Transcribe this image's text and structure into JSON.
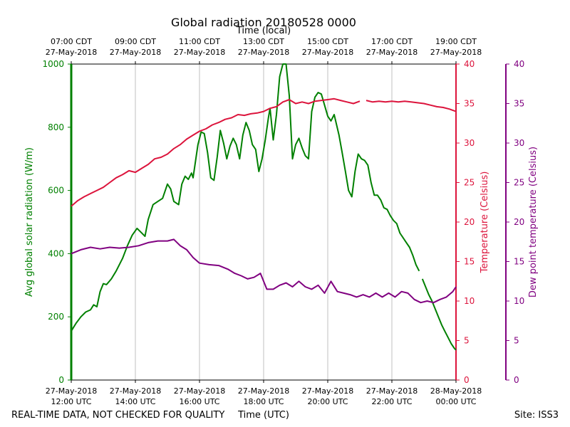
{
  "chart_data": {
    "type": "line",
    "title": "Global radiation 20180528 0000",
    "top_axis_label": "Time (local)",
    "bottom_axis_label": "Time (UTC)",
    "footer_left": "REAL-TIME DATA, NOT CHECKED FOR QUALITY",
    "footer_right": "Site: ISS3",
    "x_range_hours_utc": [
      12,
      24
    ],
    "bottom_ticks": [
      {
        "h": 12,
        "line1": "27-May-2018",
        "line2": "12:00 UTC"
      },
      {
        "h": 14,
        "line1": "27-May-2018",
        "line2": "14:00 UTC"
      },
      {
        "h": 16,
        "line1": "27-May-2018",
        "line2": "16:00 UTC"
      },
      {
        "h": 18,
        "line1": "27-May-2018",
        "line2": "18:00 UTC"
      },
      {
        "h": 20,
        "line1": "27-May-2018",
        "line2": "20:00 UTC"
      },
      {
        "h": 22,
        "line1": "27-May-2018",
        "line2": "22:00 UTC"
      },
      {
        "h": 24,
        "line1": "28-May-2018",
        "line2": "00:00 UTC"
      }
    ],
    "top_ticks": [
      {
        "h": 12,
        "line1": "07:00 CDT",
        "line2": "27-May-2018"
      },
      {
        "h": 14,
        "line1": "09:00 CDT",
        "line2": "27-May-2018"
      },
      {
        "h": 16,
        "line1": "11:00 CDT",
        "line2": "27-May-2018"
      },
      {
        "h": 18,
        "line1": "13:00 CDT",
        "line2": "27-May-2018"
      },
      {
        "h": 20,
        "line1": "15:00 CDT",
        "line2": "27-May-2018"
      },
      {
        "h": 22,
        "line1": "17:00 CDT",
        "line2": "27-May-2018"
      },
      {
        "h": 24,
        "line1": "19:00 CDT",
        "line2": "27-May-2018"
      }
    ],
    "grid_x": true,
    "axes": {
      "radiation": {
        "label": "Avg global solar radiation (W/m)",
        "ylim": [
          0,
          1000
        ],
        "ticks": [
          "0",
          "200",
          "400",
          "600",
          "800",
          "1000"
        ],
        "color": "#008000"
      },
      "temperature": {
        "label": "Temperature (Celsius)",
        "ylim": [
          0,
          40
        ],
        "ticks": [
          "0",
          "5",
          "10",
          "15",
          "20",
          "25",
          "30",
          "35",
          "40"
        ],
        "color": "#dc143c"
      },
      "dewpoint": {
        "label": "Dew point temperature (Celsius)",
        "ylim": [
          0,
          40
        ],
        "ticks": [
          "0",
          "5",
          "10",
          "15",
          "20",
          "25",
          "30",
          "35",
          "40"
        ],
        "color": "#800080"
      }
    },
    "series": [
      {
        "key": "radiation",
        "color": "#008000",
        "gap_after_h": 22.85,
        "points": [
          [
            12.0,
            155
          ],
          [
            12.15,
            180
          ],
          [
            12.3,
            200
          ],
          [
            12.45,
            215
          ],
          [
            12.6,
            222
          ],
          [
            12.7,
            238
          ],
          [
            12.8,
            232
          ],
          [
            12.9,
            280
          ],
          [
            13.0,
            305
          ],
          [
            13.1,
            302
          ],
          [
            13.25,
            320
          ],
          [
            13.4,
            345
          ],
          [
            13.6,
            385
          ],
          [
            13.75,
            425
          ],
          [
            13.9,
            458
          ],
          [
            14.05,
            480
          ],
          [
            14.15,
            470
          ],
          [
            14.3,
            455
          ],
          [
            14.4,
            508
          ],
          [
            14.55,
            555
          ],
          [
            14.7,
            565
          ],
          [
            14.85,
            575
          ],
          [
            15.0,
            620
          ],
          [
            15.1,
            605
          ],
          [
            15.2,
            565
          ],
          [
            15.35,
            555
          ],
          [
            15.45,
            620
          ],
          [
            15.55,
            645
          ],
          [
            15.65,
            635
          ],
          [
            15.75,
            655
          ],
          [
            15.8,
            640
          ],
          [
            15.95,
            745
          ],
          [
            16.05,
            785
          ],
          [
            16.15,
            780
          ],
          [
            16.25,
            720
          ],
          [
            16.35,
            640
          ],
          [
            16.45,
            632
          ],
          [
            16.55,
            705
          ],
          [
            16.65,
            790
          ],
          [
            16.75,
            750
          ],
          [
            16.85,
            700
          ],
          [
            16.95,
            740
          ],
          [
            17.05,
            765
          ],
          [
            17.15,
            745
          ],
          [
            17.25,
            700
          ],
          [
            17.35,
            775
          ],
          [
            17.45,
            815
          ],
          [
            17.55,
            790
          ],
          [
            17.65,
            745
          ],
          [
            17.75,
            730
          ],
          [
            17.85,
            660
          ],
          [
            17.95,
            700
          ],
          [
            18.05,
            760
          ],
          [
            18.15,
            830
          ],
          [
            18.2,
            860
          ],
          [
            18.3,
            760
          ],
          [
            18.4,
            840
          ],
          [
            18.5,
            960
          ],
          [
            18.6,
            1000
          ],
          [
            18.7,
            1000
          ],
          [
            18.8,
            900
          ],
          [
            18.9,
            700
          ],
          [
            19.0,
            745
          ],
          [
            19.1,
            765
          ],
          [
            19.2,
            735
          ],
          [
            19.3,
            710
          ],
          [
            19.4,
            700
          ],
          [
            19.5,
            850
          ],
          [
            19.6,
            895
          ],
          [
            19.7,
            910
          ],
          [
            19.8,
            905
          ],
          [
            19.9,
            870
          ],
          [
            20.0,
            835
          ],
          [
            20.1,
            820
          ],
          [
            20.2,
            840
          ],
          [
            20.35,
            775
          ],
          [
            20.45,
            720
          ],
          [
            20.55,
            660
          ],
          [
            20.65,
            600
          ],
          [
            20.75,
            580
          ],
          [
            20.85,
            660
          ],
          [
            20.95,
            715
          ],
          [
            21.05,
            700
          ],
          [
            21.15,
            695
          ],
          [
            21.25,
            680
          ],
          [
            21.35,
            625
          ],
          [
            21.45,
            585
          ],
          [
            21.55,
            585
          ],
          [
            21.65,
            570
          ],
          [
            21.75,
            545
          ],
          [
            21.85,
            540
          ],
          [
            21.95,
            520
          ],
          [
            22.05,
            505
          ],
          [
            22.15,
            495
          ],
          [
            22.25,
            465
          ],
          [
            22.35,
            450
          ],
          [
            22.45,
            435
          ],
          [
            22.55,
            420
          ],
          [
            22.65,
            395
          ],
          [
            22.75,
            365
          ],
          [
            22.85,
            345
          ],
          [
            22.95,
            320
          ],
          [
            23.05,
            295
          ],
          [
            23.15,
            270
          ],
          [
            23.25,
            250
          ],
          [
            23.35,
            225
          ],
          [
            23.45,
            200
          ],
          [
            23.55,
            175
          ],
          [
            23.65,
            155
          ],
          [
            23.75,
            135
          ],
          [
            23.85,
            115
          ],
          [
            23.95,
            100
          ],
          [
            24.0,
            95
          ]
        ]
      },
      {
        "key": "temperature",
        "color": "#dc143c",
        "gap_after_h": 21.0,
        "points": [
          [
            12.0,
            22.0
          ],
          [
            12.2,
            22.7
          ],
          [
            12.4,
            23.2
          ],
          [
            12.6,
            23.6
          ],
          [
            12.8,
            24.0
          ],
          [
            13.0,
            24.4
          ],
          [
            13.2,
            25.0
          ],
          [
            13.4,
            25.6
          ],
          [
            13.6,
            26.0
          ],
          [
            13.8,
            26.5
          ],
          [
            14.0,
            26.3
          ],
          [
            14.2,
            26.8
          ],
          [
            14.4,
            27.3
          ],
          [
            14.6,
            28.0
          ],
          [
            14.8,
            28.2
          ],
          [
            15.0,
            28.6
          ],
          [
            15.2,
            29.3
          ],
          [
            15.4,
            29.8
          ],
          [
            15.6,
            30.5
          ],
          [
            15.8,
            31.0
          ],
          [
            16.0,
            31.5
          ],
          [
            16.2,
            31.8
          ],
          [
            16.4,
            32.3
          ],
          [
            16.6,
            32.6
          ],
          [
            16.8,
            33.0
          ],
          [
            17.0,
            33.2
          ],
          [
            17.2,
            33.6
          ],
          [
            17.4,
            33.5
          ],
          [
            17.6,
            33.7
          ],
          [
            17.8,
            33.8
          ],
          [
            18.0,
            34.0
          ],
          [
            18.2,
            34.4
          ],
          [
            18.4,
            34.6
          ],
          [
            18.6,
            35.2
          ],
          [
            18.8,
            35.5
          ],
          [
            19.0,
            35.0
          ],
          [
            19.2,
            35.2
          ],
          [
            19.4,
            35.0
          ],
          [
            19.6,
            35.3
          ],
          [
            19.8,
            35.4
          ],
          [
            20.0,
            35.5
          ],
          [
            20.2,
            35.6
          ],
          [
            20.4,
            35.4
          ],
          [
            20.6,
            35.2
          ],
          [
            20.8,
            35.0
          ],
          [
            21.0,
            35.3
          ],
          [
            21.2,
            35.4
          ],
          [
            21.4,
            35.2
          ],
          [
            21.6,
            35.3
          ],
          [
            21.8,
            35.2
          ],
          [
            22.0,
            35.3
          ],
          [
            22.2,
            35.2
          ],
          [
            22.4,
            35.3
          ],
          [
            22.6,
            35.2
          ],
          [
            22.8,
            35.1
          ],
          [
            23.0,
            35.0
          ],
          [
            23.2,
            34.8
          ],
          [
            23.4,
            34.6
          ],
          [
            23.6,
            34.5
          ],
          [
            23.8,
            34.3
          ],
          [
            24.0,
            34.0
          ]
        ]
      },
      {
        "key": "dewpoint",
        "color": "#800080",
        "gap_after_h": 99,
        "points": [
          [
            12.0,
            16.0
          ],
          [
            12.3,
            16.5
          ],
          [
            12.6,
            16.8
          ],
          [
            12.9,
            16.6
          ],
          [
            13.2,
            16.8
          ],
          [
            13.5,
            16.7
          ],
          [
            13.8,
            16.8
          ],
          [
            14.1,
            17.0
          ],
          [
            14.4,
            17.4
          ],
          [
            14.7,
            17.6
          ],
          [
            15.0,
            17.6
          ],
          [
            15.2,
            17.8
          ],
          [
            15.4,
            17.0
          ],
          [
            15.6,
            16.5
          ],
          [
            15.8,
            15.5
          ],
          [
            16.0,
            14.8
          ],
          [
            16.3,
            14.6
          ],
          [
            16.6,
            14.5
          ],
          [
            16.9,
            14.0
          ],
          [
            17.1,
            13.5
          ],
          [
            17.3,
            13.2
          ],
          [
            17.5,
            12.8
          ],
          [
            17.7,
            13.0
          ],
          [
            17.9,
            13.5
          ],
          [
            18.1,
            11.5
          ],
          [
            18.3,
            11.5
          ],
          [
            18.5,
            12.0
          ],
          [
            18.7,
            12.3
          ],
          [
            18.9,
            11.8
          ],
          [
            19.1,
            12.5
          ],
          [
            19.3,
            11.8
          ],
          [
            19.5,
            11.5
          ],
          [
            19.7,
            12.0
          ],
          [
            19.9,
            11.0
          ],
          [
            20.1,
            12.5
          ],
          [
            20.3,
            11.2
          ],
          [
            20.5,
            11.0
          ],
          [
            20.7,
            10.8
          ],
          [
            20.9,
            10.5
          ],
          [
            21.1,
            10.8
          ],
          [
            21.3,
            10.5
          ],
          [
            21.5,
            11.0
          ],
          [
            21.7,
            10.5
          ],
          [
            21.9,
            11.0
          ],
          [
            22.1,
            10.5
          ],
          [
            22.3,
            11.2
          ],
          [
            22.5,
            11.0
          ],
          [
            22.7,
            10.2
          ],
          [
            22.9,
            9.8
          ],
          [
            23.1,
            10.0
          ],
          [
            23.3,
            9.8
          ],
          [
            23.5,
            10.2
          ],
          [
            23.7,
            10.5
          ],
          [
            23.9,
            11.2
          ],
          [
            24.0,
            11.8
          ]
        ]
      }
    ]
  }
}
